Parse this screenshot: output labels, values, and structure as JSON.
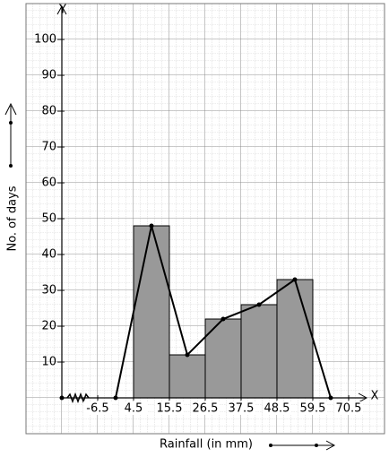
{
  "chart_data": {
    "type": "histogram",
    "x_label": "Rainfall (in mm)",
    "y_label": "No. of days",
    "x_axis_name": "X",
    "y_axis_name": "Y",
    "bins": [
      4.5,
      15.5,
      26.5,
      37.5,
      48.5,
      59.5
    ],
    "counts": [
      48,
      12,
      22,
      26,
      33
    ],
    "polygon": {
      "x": [
        -1,
        10,
        21,
        32,
        43,
        54,
        65
      ],
      "values": [
        0,
        48,
        12,
        22,
        26,
        33,
        0
      ]
    },
    "bar_color": "#999999",
    "line_color": "#000000",
    "xlim": [
      -17.5,
      76.5
    ],
    "ylim": [
      0,
      110
    ],
    "xticks": [
      -6.5,
      4.5,
      15.5,
      26.5,
      37.5,
      48.5,
      59.5,
      70.5
    ],
    "yticks": [
      10,
      20,
      30,
      40,
      50,
      60,
      70,
      80,
      90,
      100
    ]
  }
}
